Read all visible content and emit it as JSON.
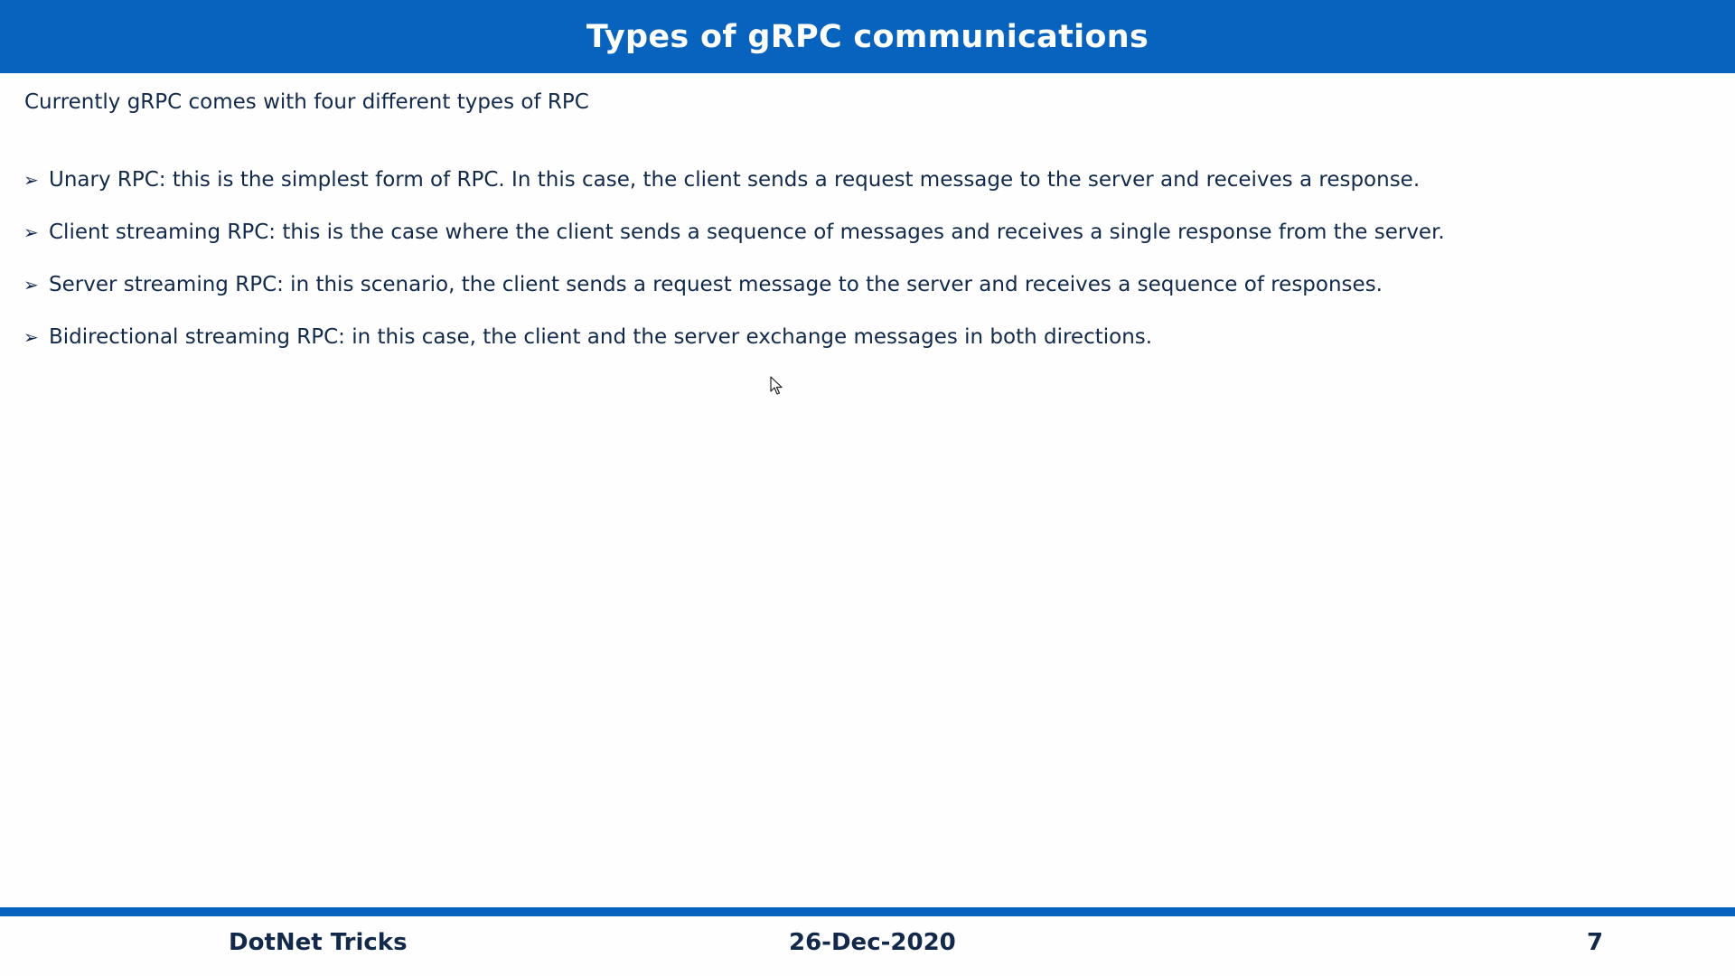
{
  "slide": {
    "title": "Types of gRPC communications",
    "intro": "Currently gRPC comes with four different types of RPC",
    "bullet_marker": "➢",
    "bullets": [
      "Unary RPC: this is the simplest form of RPC. In this case, the client sends a request message to the server and receives a response.",
      "Client streaming RPC: this is the case where the client sends a sequence of messages and receives a single response from the server.",
      "Server streaming RPC: in this scenario, the client sends a request message to the server and receives a sequence of responses.",
      "Bidirectional streaming RPC: in this case, the client and the server exchange messages in both directions."
    ]
  },
  "footer": {
    "left": "DotNet Tricks",
    "center": "26-Dec-2020",
    "page_number": "7"
  },
  "colors": {
    "accent": "#0763bd",
    "text": "#12294a",
    "background": "#fefefe"
  },
  "icons": {
    "cursor": "mouse-pointer-icon"
  }
}
